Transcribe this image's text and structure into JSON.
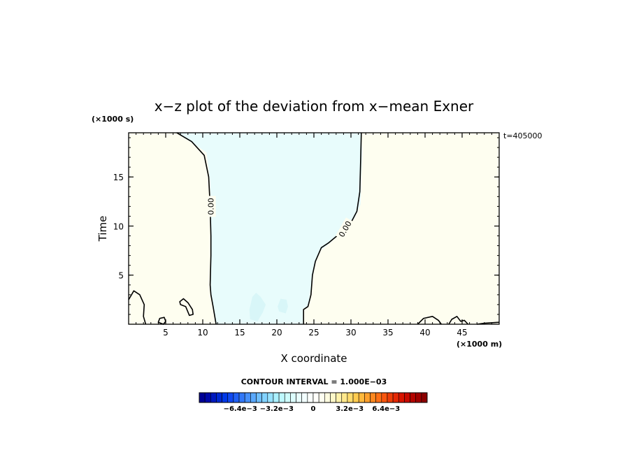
{
  "chart_data": {
    "type": "contour",
    "title": "x−z plot of the deviation from x−mean Exner",
    "xlabel": "X coordinate",
    "ylabel": "Time",
    "x_unit": "(×1000 m)",
    "y_unit": "(×1000 s)",
    "time_label": "t=405000",
    "xlim": [
      0,
      50
    ],
    "ylim": [
      0,
      19.5
    ],
    "x_ticks": [
      5,
      10,
      15,
      20,
      25,
      30,
      35,
      40,
      45
    ],
    "y_ticks": [
      5,
      10,
      15
    ],
    "contour_interval_text": "CONTOUR INTERVAL = 1.000E−03",
    "contour_label": "0.00",
    "regions": [
      {
        "name": "negative",
        "color": "#e8fcfc",
        "points": [
          [
            6.5,
            19.5
          ],
          [
            10.5,
            17.5
          ],
          [
            11.0,
            14.5
          ],
          [
            11.1,
            11.0
          ],
          [
            11.1,
            7.5
          ],
          [
            11.1,
            3.0
          ],
          [
            11.5,
            1.5
          ],
          [
            11.7,
            0
          ],
          [
            23.5,
            0
          ],
          [
            23.5,
            1.6
          ],
          [
            24.2,
            1.8
          ],
          [
            24.7,
            4.0
          ],
          [
            25.0,
            5.6
          ],
          [
            25.6,
            7.3
          ],
          [
            27.2,
            8.3
          ],
          [
            28.9,
            9.6
          ],
          [
            30.5,
            10.8
          ],
          [
            31.3,
            12.2
          ],
          [
            31.4,
            15.0
          ],
          [
            31.5,
            17.5
          ],
          [
            31.4,
            19.5
          ]
        ]
      },
      {
        "name": "small-negative",
        "color": "#d8f6f8",
        "points": [
          [
            16.3,
            1.5
          ],
          [
            16.7,
            2.8
          ],
          [
            17.2,
            3.2
          ],
          [
            17.8,
            2.8
          ],
          [
            18.5,
            2.0
          ],
          [
            18.1,
            1.2
          ],
          [
            17.4,
            0.3
          ],
          [
            16.4,
            0.5
          ]
        ]
      },
      {
        "name": "small-negative",
        "color": "#d8f6f8",
        "points": [
          [
            20.1,
            1.8
          ],
          [
            20.5,
            2.6
          ],
          [
            21.3,
            2.5
          ],
          [
            21.5,
            1.8
          ],
          [
            21.2,
            1.1
          ],
          [
            20.3,
            1.3
          ]
        ]
      }
    ],
    "contours": [
      {
        "level": 0.0,
        "points": [
          [
            6.5,
            19.5
          ],
          [
            8.5,
            18.6
          ],
          [
            10.2,
            17.2
          ],
          [
            10.8,
            15.0
          ],
          [
            11.0,
            12.0
          ],
          [
            11.1,
            9.0
          ],
          [
            11.1,
            7.0
          ],
          [
            11.0,
            4.0
          ],
          [
            11.1,
            3.0
          ],
          [
            11.4,
            1.8
          ],
          [
            11.8,
            0
          ]
        ]
      },
      {
        "level": 0.0,
        "points": [
          [
            23.6,
            0
          ],
          [
            23.6,
            1.5
          ],
          [
            24.2,
            1.8
          ],
          [
            24.6,
            3.0
          ],
          [
            24.8,
            5.0
          ],
          [
            25.2,
            6.4
          ],
          [
            26.0,
            7.8
          ],
          [
            27.0,
            8.3
          ],
          [
            28.6,
            9.3
          ],
          [
            29.9,
            10.2
          ],
          [
            30.8,
            11.5
          ],
          [
            31.2,
            13.5
          ],
          [
            31.3,
            16.5
          ],
          [
            31.4,
            19.5
          ]
        ]
      },
      {
        "level": 0.0,
        "closed": false,
        "points": [
          [
            0,
            2.5
          ],
          [
            0.7,
            3.4
          ],
          [
            1.5,
            3.0
          ],
          [
            2.1,
            2.0
          ],
          [
            2.0,
            0.8
          ],
          [
            2.3,
            0
          ]
        ]
      },
      {
        "level": 0.0,
        "closed": true,
        "points": [
          [
            4.0,
            0.2
          ],
          [
            4.2,
            0.6
          ],
          [
            4.8,
            0.7
          ],
          [
            5.0,
            0.3
          ],
          [
            4.7,
            0
          ]
        ]
      },
      {
        "level": 0.0,
        "closed": true,
        "points": [
          [
            6.9,
            2.3
          ],
          [
            7.4,
            2.6
          ],
          [
            8.0,
            2.2
          ],
          [
            8.6,
            1.5
          ],
          [
            8.7,
            1.0
          ],
          [
            8.2,
            0.9
          ],
          [
            7.7,
            1.8
          ],
          [
            7.0,
            2.0
          ]
        ]
      },
      {
        "level": 0.0,
        "points": [
          [
            39.0,
            0
          ],
          [
            39.8,
            0.6
          ],
          [
            41.0,
            0.8
          ],
          [
            41.8,
            0.4
          ],
          [
            42.2,
            0
          ]
        ]
      },
      {
        "level": 0.0,
        "points": [
          [
            43.2,
            0
          ],
          [
            43.6,
            0.5
          ],
          [
            44.3,
            0.8
          ],
          [
            44.8,
            0.3
          ],
          [
            45.3,
            0.4
          ],
          [
            45.8,
            0
          ]
        ]
      },
      {
        "level": 0.0,
        "points": [
          [
            47.0,
            0
          ],
          [
            48.0,
            0.1
          ],
          [
            50.0,
            0.2
          ]
        ]
      }
    ],
    "contour_labels": [
      {
        "text": "0.00",
        "x": 11.1,
        "y": 12.0,
        "angle": -90
      },
      {
        "text": "0.00",
        "x": 29.2,
        "y": 9.7,
        "angle": -60
      }
    ],
    "background_color": "#fefef0",
    "colorbar": {
      "tick_labels": [
        "−6.4e−3",
        "−3.2e−3",
        "0",
        "3.2e−3",
        "6.4e−3"
      ],
      "tick_values": [
        -0.0064,
        -0.0032,
        0,
        0.0032,
        0.0064
      ],
      "range": [
        -0.01,
        0.01
      ],
      "colors": [
        "#000096",
        "#0008aa",
        "#0018be",
        "#0028d2",
        "#0038e6",
        "#1048f0",
        "#2060f4",
        "#3278f8",
        "#4690fa",
        "#5aa8fc",
        "#6ebefe",
        "#82d2ff",
        "#96e2ff",
        "#aaf0ff",
        "#bef8ff",
        "#cefcfc",
        "#dcfefe",
        "#e8fefe",
        "#f2ffff",
        "#fafffc",
        "#fffffa",
        "#fffff0",
        "#fffce0",
        "#fff8c8",
        "#fff2aa",
        "#ffe88c",
        "#ffdc6e",
        "#ffcc50",
        "#ffb83c",
        "#ffa02c",
        "#ff8820",
        "#ff7016",
        "#f8560e",
        "#ee3e08",
        "#e42804",
        "#d81400",
        "#c80a00",
        "#b40400",
        "#a00000",
        "#8c0000"
      ]
    }
  }
}
